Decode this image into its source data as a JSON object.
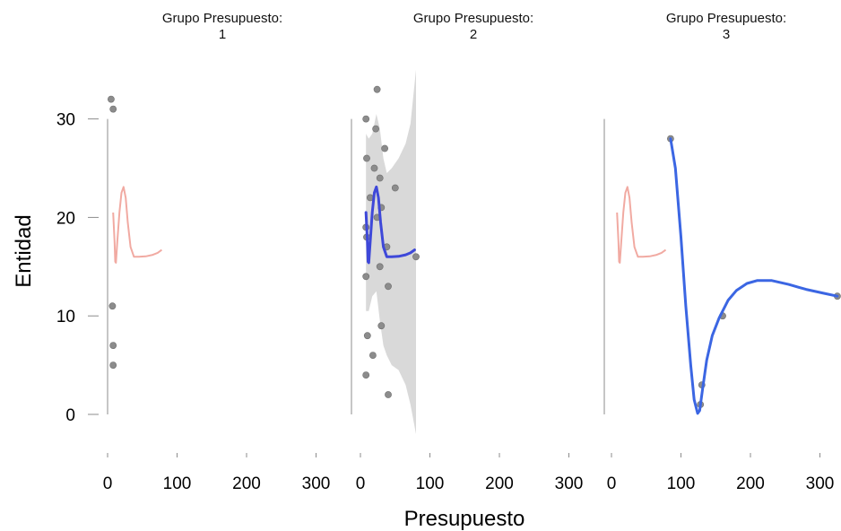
{
  "chart_data": {
    "type": "scatter",
    "xlabel": "Presupuesto",
    "ylabel": "Entidad",
    "xticks": [
      0,
      100,
      200,
      300
    ],
    "yticks": [
      0,
      10,
      20,
      30
    ],
    "xlim": [
      0,
      330
    ],
    "ylim": [
      -3,
      35
    ],
    "colors": {
      "points": "#8c8c8c",
      "fit_highlight": "#3e48d9",
      "fit_panel3": "#3b66e3",
      "fit_reference": "#f1aaa2",
      "ribbon": "#d9d9d9",
      "axis": "#8c8c8c"
    },
    "panels": [
      {
        "title_line1": "Grupo Presupuesto:",
        "title_line2": "1",
        "points": [
          [
            5,
            32
          ],
          [
            8,
            31
          ],
          [
            7,
            11
          ],
          [
            8,
            7
          ],
          [
            8,
            5
          ]
        ],
        "fit": [],
        "reference_fit": [
          [
            8,
            20.5
          ],
          [
            10,
            17.5
          ],
          [
            11,
            15.5
          ],
          [
            12,
            15.4
          ],
          [
            14,
            17.5
          ],
          [
            17,
            20.5
          ],
          [
            20,
            22.5
          ],
          [
            23,
            23.1
          ],
          [
            26,
            22
          ],
          [
            29,
            19.5
          ],
          [
            33,
            17
          ],
          [
            38,
            16
          ],
          [
            45,
            16
          ],
          [
            55,
            16.05
          ],
          [
            65,
            16.2
          ],
          [
            72,
            16.4
          ],
          [
            78,
            16.7
          ]
        ],
        "ribbon": []
      },
      {
        "title_line1": "Grupo Presupuesto:",
        "title_line2": "2",
        "points": [
          [
            8,
            30
          ],
          [
            9,
            26
          ],
          [
            24,
            33
          ],
          [
            22,
            29
          ],
          [
            20,
            25
          ],
          [
            35,
            27
          ],
          [
            28,
            24
          ],
          [
            14,
            22
          ],
          [
            50,
            23
          ],
          [
            30,
            21
          ],
          [
            24,
            20
          ],
          [
            8,
            19
          ],
          [
            9,
            18
          ],
          [
            38,
            17
          ],
          [
            80,
            16
          ],
          [
            28,
            15
          ],
          [
            8,
            14
          ],
          [
            40,
            13
          ],
          [
            30,
            9
          ],
          [
            10,
            8
          ],
          [
            18,
            6
          ],
          [
            8,
            4
          ],
          [
            40,
            2
          ]
        ],
        "fit": [
          [
            8,
            20.5
          ],
          [
            10,
            17.5
          ],
          [
            11,
            15.5
          ],
          [
            12,
            15.4
          ],
          [
            14,
            17.5
          ],
          [
            17,
            20.5
          ],
          [
            20,
            22.5
          ],
          [
            23,
            23.1
          ],
          [
            26,
            22
          ],
          [
            29,
            19.5
          ],
          [
            33,
            17
          ],
          [
            38,
            16
          ],
          [
            45,
            16
          ],
          [
            55,
            16.05
          ],
          [
            65,
            16.2
          ],
          [
            72,
            16.4
          ],
          [
            78,
            16.7
          ]
        ],
        "reference_fit": [],
        "ribbon": [
          [
            8,
            28.5,
            10.5
          ],
          [
            12,
            28,
            10.5
          ],
          [
            17,
            28.5,
            12
          ],
          [
            23,
            30.5,
            12.5
          ],
          [
            28,
            29,
            9.5
          ],
          [
            33,
            26,
            7
          ],
          [
            38,
            24.5,
            6
          ],
          [
            45,
            25,
            5
          ],
          [
            55,
            26,
            4.5
          ],
          [
            65,
            27.5,
            3
          ],
          [
            72,
            29.5,
            1
          ],
          [
            80,
            35,
            -2
          ]
        ]
      },
      {
        "title_line1": "Grupo Presupuesto:",
        "title_line2": "3",
        "points": [
          [
            85,
            28
          ],
          [
            130,
            3
          ],
          [
            128,
            1
          ],
          [
            160,
            10
          ],
          [
            325,
            12
          ]
        ],
        "fit": [
          [
            85,
            28
          ],
          [
            92,
            25
          ],
          [
            100,
            18
          ],
          [
            107,
            11
          ],
          [
            114,
            5
          ],
          [
            119,
            1.5
          ],
          [
            124,
            0.1
          ],
          [
            127,
            0.4
          ],
          [
            131,
            2.5
          ],
          [
            137,
            5.5
          ],
          [
            145,
            8
          ],
          [
            155,
            9.8
          ],
          [
            168,
            11.6
          ],
          [
            180,
            12.6
          ],
          [
            195,
            13.3
          ],
          [
            210,
            13.6
          ],
          [
            230,
            13.6
          ],
          [
            255,
            13.2
          ],
          [
            280,
            12.7
          ],
          [
            305,
            12.3
          ],
          [
            325,
            12
          ]
        ],
        "reference_fit": [
          [
            8,
            20.5
          ],
          [
            10,
            17.5
          ],
          [
            11,
            15.5
          ],
          [
            12,
            15.4
          ],
          [
            14,
            17.5
          ],
          [
            17,
            20.5
          ],
          [
            20,
            22.5
          ],
          [
            23,
            23.1
          ],
          [
            26,
            22
          ],
          [
            29,
            19.5
          ],
          [
            33,
            17
          ],
          [
            38,
            16
          ],
          [
            45,
            16
          ],
          [
            55,
            16.05
          ],
          [
            65,
            16.2
          ],
          [
            72,
            16.4
          ],
          [
            78,
            16.7
          ]
        ],
        "ribbon": []
      }
    ]
  }
}
